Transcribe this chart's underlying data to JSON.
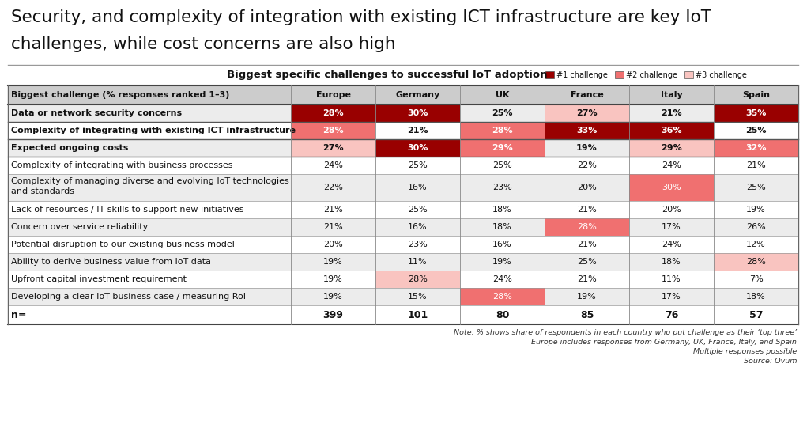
{
  "title_line1": "Security, and complexity of integration with existing ICT infrastructure are key IoT",
  "title_line2": "challenges, while cost concerns are also high",
  "subtitle": "Biggest specific challenges to successful IoT adoption",
  "legend_items": [
    "#1 challenge",
    "#2 challenge",
    "#3 challenge"
  ],
  "legend_colors": [
    "#990000",
    "#f07070",
    "#f9c4c0"
  ],
  "col_headers": [
    "Biggest challenge (% responses ranked 1–3)",
    "Europe",
    "Germany",
    "UK",
    "France",
    "Italy",
    "Spain"
  ],
  "rows": [
    {
      "label": "Data or network security concerns",
      "values": [
        "28%",
        "30%",
        "25%",
        "27%",
        "21%",
        "35%"
      ],
      "colors": [
        "#990000",
        "#990000",
        "none",
        "#f9c4c0",
        "none",
        "#990000"
      ],
      "bold": true
    },
    {
      "label": "Complexity of integrating with existing ICT infrastructure",
      "values": [
        "28%",
        "21%",
        "28%",
        "33%",
        "36%",
        "25%"
      ],
      "colors": [
        "#f07070",
        "none",
        "#f07070",
        "#990000",
        "#990000",
        "none"
      ],
      "bold": true
    },
    {
      "label": "Expected ongoing costs",
      "values": [
        "27%",
        "30%",
        "29%",
        "19%",
        "29%",
        "32%"
      ],
      "colors": [
        "#f9c4c0",
        "#990000",
        "#f07070",
        "none",
        "#f9c4c0",
        "#f07070"
      ],
      "bold": true
    },
    {
      "label": "Complexity of integrating with business processes",
      "values": [
        "24%",
        "25%",
        "25%",
        "22%",
        "24%",
        "21%"
      ],
      "colors": [
        "none",
        "none",
        "none",
        "none",
        "none",
        "none"
      ],
      "bold": false
    },
    {
      "label": "Complexity of managing diverse and evolving IoT technologies\nand standards",
      "values": [
        "22%",
        "16%",
        "23%",
        "20%",
        "30%",
        "25%"
      ],
      "colors": [
        "none",
        "none",
        "none",
        "none",
        "#f07070",
        "none"
      ],
      "bold": false,
      "two_line": true
    },
    {
      "label": "Lack of resources / IT skills to support new initiatives",
      "values": [
        "21%",
        "25%",
        "18%",
        "21%",
        "20%",
        "19%"
      ],
      "colors": [
        "none",
        "none",
        "none",
        "none",
        "none",
        "none"
      ],
      "bold": false
    },
    {
      "label": "Concern over service reliability",
      "values": [
        "21%",
        "16%",
        "18%",
        "28%",
        "17%",
        "26%"
      ],
      "colors": [
        "none",
        "none",
        "none",
        "#f07070",
        "none",
        "none"
      ],
      "bold": false
    },
    {
      "label": "Potential disruption to our existing business model",
      "values": [
        "20%",
        "23%",
        "16%",
        "21%",
        "24%",
        "12%"
      ],
      "colors": [
        "none",
        "none",
        "none",
        "none",
        "none",
        "none"
      ],
      "bold": false
    },
    {
      "label": "Ability to derive business value from IoT data",
      "values": [
        "19%",
        "11%",
        "19%",
        "25%",
        "18%",
        "28%"
      ],
      "colors": [
        "none",
        "none",
        "none",
        "none",
        "none",
        "#f9c4c0"
      ],
      "bold": false
    },
    {
      "label": "Upfront capital investment requirement",
      "values": [
        "19%",
        "28%",
        "24%",
        "21%",
        "11%",
        "7%"
      ],
      "colors": [
        "none",
        "#f9c4c0",
        "none",
        "none",
        "none",
        "none"
      ],
      "bold": false
    },
    {
      "label": "Developing a clear IoT business case / measuring RoI",
      "values": [
        "19%",
        "15%",
        "28%",
        "19%",
        "17%",
        "18%"
      ],
      "colors": [
        "none",
        "none",
        "#f07070",
        "none",
        "none",
        "none"
      ],
      "bold": false
    }
  ],
  "n_row": [
    "n=",
    "399",
    "101",
    "80",
    "85",
    "76",
    "57"
  ],
  "note1": "Note: % shows share of respondents in each country who put challenge as their ‘top three’",
  "note2": "Europe includes responses from Germany, UK, France, Italy, and Spain",
  "note3": "Multiple responses possible",
  "source": "Source: Ovum",
  "header_bg": "#cccccc",
  "row_bg_odd": "#ececec",
  "row_bg_even": "#ffffff",
  "separator_line_color": "#888888",
  "strong_line_color": "#444444"
}
